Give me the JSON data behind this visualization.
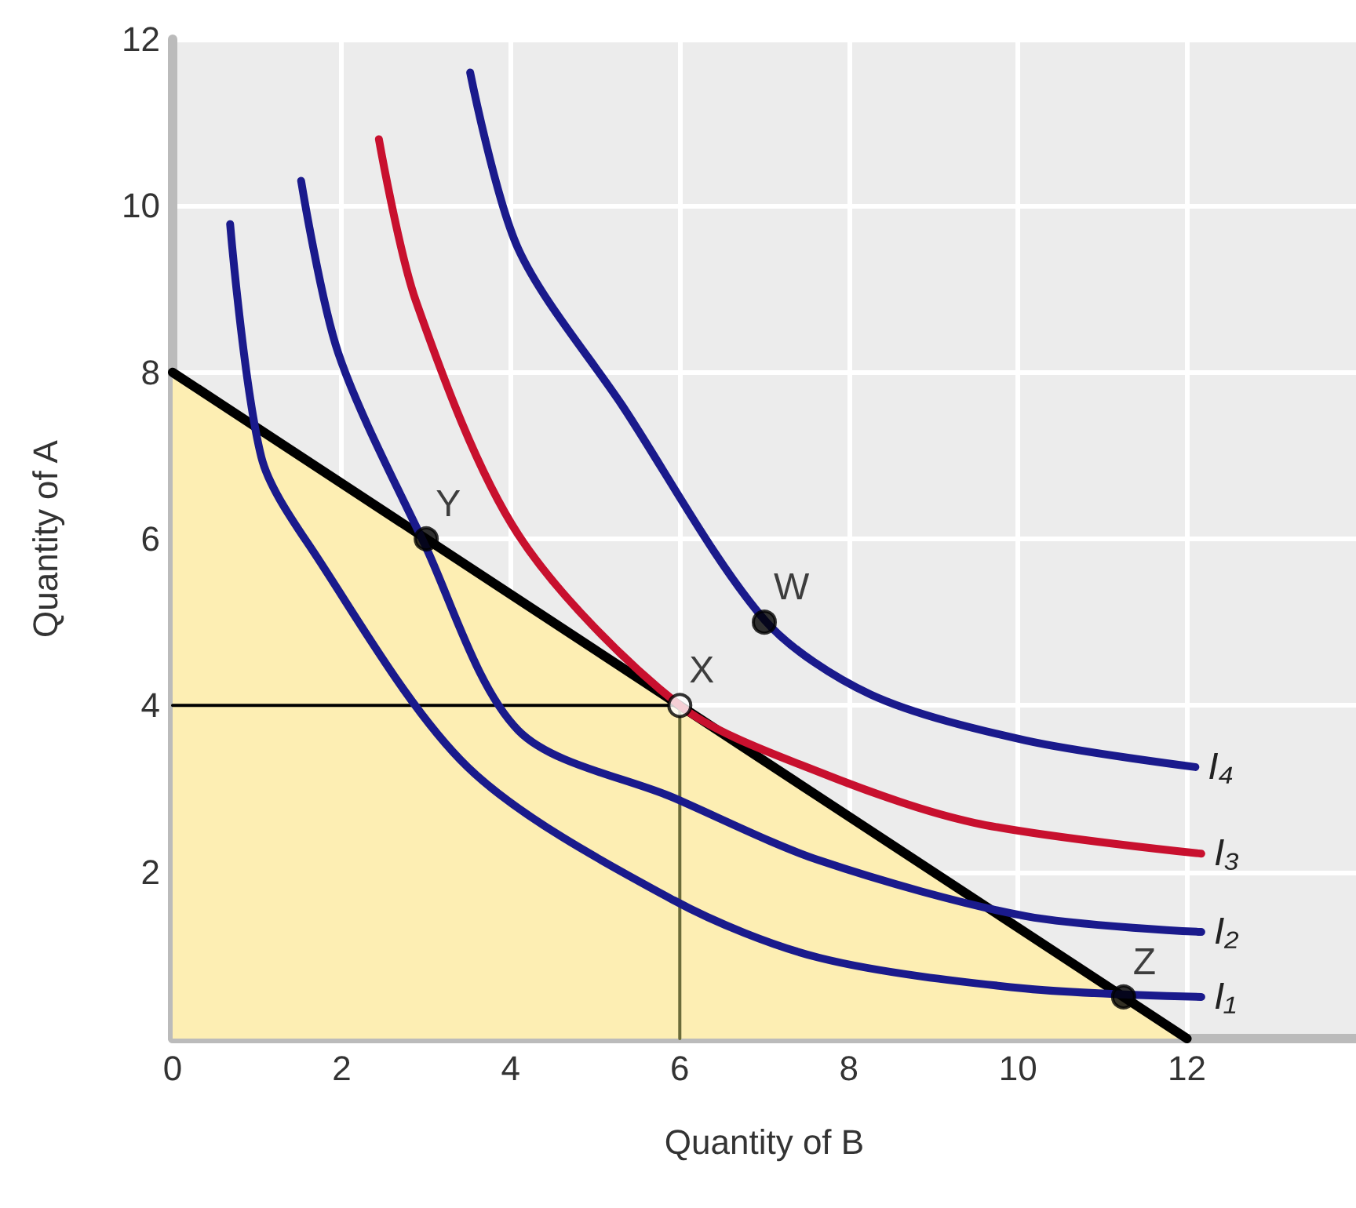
{
  "chart_data": {
    "type": "line",
    "xlabel": "Quantity of B",
    "ylabel": "Quantity of A",
    "xlim": [
      0,
      14
    ],
    "ylim": [
      0,
      12
    ],
    "xticks": [
      0,
      2,
      4,
      6,
      8,
      10,
      12
    ],
    "yticks": [
      {
        "value": 0,
        "label": null
      },
      2,
      4,
      6,
      8,
      10,
      12
    ],
    "grid": true,
    "marker": "none",
    "series": [
      {
        "type": "area",
        "color": "#000000",
        "x": [
          0,
          12
        ],
        "values": [
          8,
          0
        ]
      },
      {
        "color": "#000000",
        "x": [
          0,
          6
        ],
        "values": [
          4,
          4
        ]
      },
      {
        "color": "#6b6b3a",
        "x": [
          6,
          6
        ],
        "values": [
          0,
          4
        ]
      },
      {
        "name": "I₁",
        "color": "#1a1a8c",
        "x": [
          0.68,
          1.05,
          1.65,
          3.49,
          5.93,
          7.65,
          10.09,
          12.17
        ],
        "values": [
          9.78,
          6.98,
          5.87,
          3.26,
          1.66,
          0.97,
          0.6,
          0.5
        ]
      },
      {
        "name": "I₂",
        "color": "#1a1a8c",
        "x": [
          1.52,
          1.96,
          2.97,
          4.09,
          5.93,
          7.65,
          10.09,
          12.17
        ],
        "values": [
          10.3,
          8.23,
          5.96,
          3.7,
          2.89,
          2.14,
          1.47,
          1.28
        ]
      },
      {
        "name": "I₃",
        "color": "#c8102e",
        "x": [
          2.44,
          2.88,
          4.09,
          6,
          7.65,
          9.49,
          12.17
        ],
        "values": [
          10.8,
          8.85,
          6.05,
          4,
          3.2,
          2.59,
          2.22
        ]
      },
      {
        "name": "I₄",
        "color": "#1a1a8c",
        "x": [
          3.52,
          4.09,
          5.32,
          7,
          8.26,
          10.09,
          12.1
        ],
        "values": [
          11.6,
          9.48,
          7.6,
          5.03,
          4.13,
          3.58,
          3.26
        ]
      },
      {
        "type": "scatter",
        "marker": "circle",
        "x": [
          3,
          6,
          7,
          11.25
        ],
        "values": [
          6,
          4,
          5,
          0.5
        ],
        "colors": [
          "#000000",
          "#ffffff",
          "#000000",
          "#000000"
        ]
      }
    ],
    "annotations": [
      {
        "text": "Y",
        "x": 3,
        "y": 6
      },
      {
        "text": "X",
        "x": 6,
        "y": 4
      },
      {
        "text": "W",
        "x": 7,
        "y": 5
      },
      {
        "text": "Z",
        "x": 11.25,
        "y": 0.5
      }
    ]
  }
}
